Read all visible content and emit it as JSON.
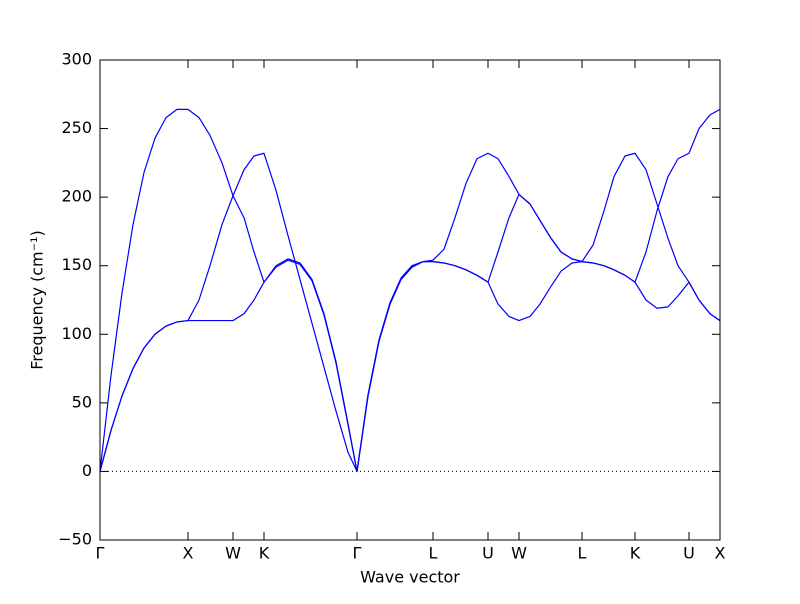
{
  "chart_data": {
    "type": "line",
    "xlabel": "Wave vector",
    "ylabel": "Frequency (cm⁻¹)",
    "x": [
      0,
      11,
      22,
      33,
      44,
      55,
      66,
      77,
      88,
      99,
      110,
      122,
      133,
      144,
      154,
      164,
      176,
      188,
      200,
      212,
      224,
      236,
      248,
      257,
      268,
      279,
      290,
      301,
      312,
      323,
      333,
      344,
      355,
      366,
      377,
      388,
      398,
      409,
      419,
      430,
      440,
      451,
      461,
      472,
      482,
      493,
      504,
      514,
      525,
      535,
      546,
      557,
      568,
      578,
      589,
      599,
      610,
      620
    ],
    "series": [
      {
        "color": "#0000ff",
        "values": [
          0,
          30,
          55,
          75,
          90,
          100,
          106,
          109,
          110,
          110,
          110,
          110,
          110,
          115,
          125,
          138,
          149,
          154,
          151,
          139,
          114,
          79,
          34,
          0,
          55,
          95,
          122,
          140,
          149,
          153,
          153,
          152,
          150,
          147,
          143,
          138,
          122,
          113,
          110,
          113,
          122,
          135,
          146,
          152,
          153,
          152,
          150,
          147,
          143,
          138,
          125,
          119,
          120,
          128,
          138,
          125,
          115,
          110
        ]
      },
      {
        "color": "#0000ff",
        "values": [
          0,
          30,
          55,
          75,
          90,
          100,
          106,
          109,
          110,
          125,
          150,
          180,
          201,
          185,
          160,
          138,
          150,
          155,
          152,
          140,
          115,
          80,
          35,
          0,
          55,
          95,
          122,
          140,
          149,
          153,
          153,
          152,
          150,
          147,
          143,
          138,
          160,
          185,
          202,
          195,
          183,
          170,
          160,
          155,
          153,
          152,
          150,
          147,
          143,
          138,
          160,
          190,
          215,
          228,
          232,
          250,
          260,
          264
        ]
      },
      {
        "color": "#0000ff",
        "values": [
          0,
          70,
          130,
          180,
          218,
          243,
          258,
          264,
          264,
          258,
          245,
          225,
          201,
          220,
          230,
          232,
          205,
          172,
          140,
          108,
          76,
          44,
          14,
          0,
          56,
          96,
          123,
          141,
          150,
          153,
          154,
          162,
          185,
          210,
          228,
          232,
          228,
          215,
          202,
          195,
          183,
          170,
          160,
          155,
          153,
          165,
          190,
          215,
          230,
          232,
          220,
          195,
          170,
          150,
          138,
          125,
          115,
          110
        ]
      }
    ],
    "xlim": [
      0,
      620
    ],
    "xticks": [
      {
        "value": 0,
        "label": "Γ"
      },
      {
        "value": 88,
        "label": "X"
      },
      {
        "value": 133,
        "label": "W"
      },
      {
        "value": 164,
        "label": "K"
      },
      {
        "value": 257,
        "label": "Γ"
      },
      {
        "value": 333,
        "label": "L"
      },
      {
        "value": 388,
        "label": "U"
      },
      {
        "value": 419,
        "label": "W"
      },
      {
        "value": 482,
        "label": "L"
      },
      {
        "value": 535,
        "label": "K"
      },
      {
        "value": 589,
        "label": "U"
      },
      {
        "value": 620,
        "label": "X"
      }
    ],
    "ylim": [
      -50,
      300
    ],
    "yticks": [
      {
        "value": -50,
        "label": "−50"
      },
      0,
      50,
      100,
      150,
      200,
      250,
      300
    ],
    "hlines": [
      0
    ],
    "grid": false
  }
}
